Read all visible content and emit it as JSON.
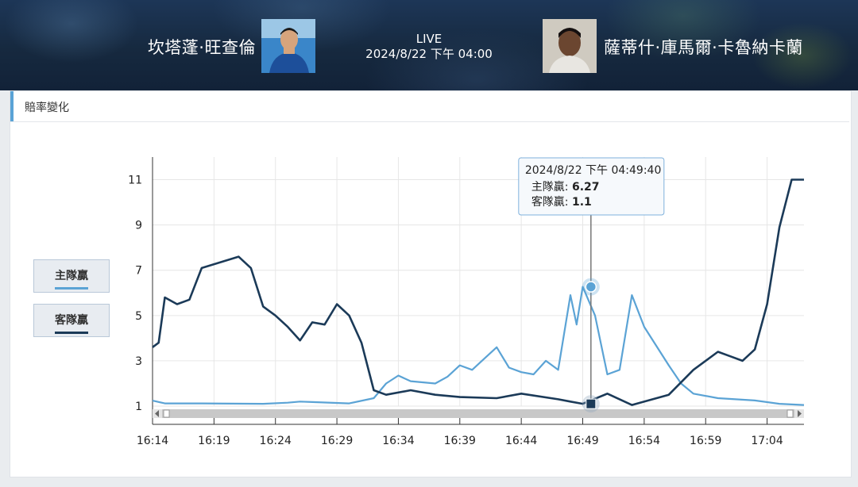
{
  "header": {
    "home_player": "坎塔蓬·旺查倫",
    "away_player": "薩蒂什·庫馬爾·卡魯納卡蘭",
    "status": "LIVE",
    "datetime": "2024/8/22 下午 04:00"
  },
  "panel": {
    "title": "賠率變化"
  },
  "colors": {
    "home": "#5ba3d5",
    "away": "#1b3a58",
    "accent": "#5aa3d6"
  },
  "chart_data": {
    "type": "line",
    "x_ticks": [
      "16:14",
      "16:19",
      "16:24",
      "16:29",
      "16:34",
      "16:39",
      "16:44",
      "16:49",
      "16:54",
      "16:59",
      "17:04"
    ],
    "y_ticks": [
      "1",
      "3",
      "5",
      "7",
      "9",
      "11"
    ],
    "x_range": [
      "16:14",
      "17:07"
    ],
    "ylim": [
      1,
      12
    ],
    "grid": true,
    "legend_position": "left",
    "series": [
      {
        "name": "主隊贏",
        "color": "#5ba3d5",
        "points": [
          [
            "16:14",
            1.24
          ],
          [
            "16:15",
            1.12
          ],
          [
            "16:18",
            1.12
          ],
          [
            "16:23",
            1.1
          ],
          [
            "16:25",
            1.15
          ],
          [
            "16:26",
            1.2
          ],
          [
            "16:27",
            1.18
          ],
          [
            "16:30",
            1.12
          ],
          [
            "16:32",
            1.35
          ],
          [
            "16:33",
            2.0
          ],
          [
            "16:34",
            2.35
          ],
          [
            "16:35",
            2.1
          ],
          [
            "16:37",
            2.0
          ],
          [
            "16:38",
            2.3
          ],
          [
            "16:39",
            2.8
          ],
          [
            "16:40",
            2.6
          ],
          [
            "16:41",
            3.1
          ],
          [
            "16:42",
            3.6
          ],
          [
            "16:43",
            2.7
          ],
          [
            "16:44",
            2.5
          ],
          [
            "16:45",
            2.4
          ],
          [
            "16:46",
            3.0
          ],
          [
            "16:47",
            2.6
          ],
          [
            "16:48",
            5.9
          ],
          [
            "16:48:30",
            4.6
          ],
          [
            "16:49",
            6.27
          ],
          [
            "16:50",
            5.0
          ],
          [
            "16:51",
            2.4
          ],
          [
            "16:52",
            2.6
          ],
          [
            "16:53",
            5.9
          ],
          [
            "16:54",
            4.5
          ],
          [
            "16:56",
            2.8
          ],
          [
            "16:57",
            2.0
          ],
          [
            "16:58",
            1.55
          ],
          [
            "17:00",
            1.35
          ],
          [
            "17:03",
            1.25
          ],
          [
            "17:05",
            1.1
          ],
          [
            "17:07",
            1.05
          ]
        ]
      },
      {
        "name": "客隊贏",
        "color": "#1b3a58",
        "points": [
          [
            "16:14",
            3.6
          ],
          [
            "16:14:30",
            3.8
          ],
          [
            "16:15",
            5.8
          ],
          [
            "16:16",
            5.5
          ],
          [
            "16:17",
            5.7
          ],
          [
            "16:18",
            7.1
          ],
          [
            "16:21",
            7.6
          ],
          [
            "16:22",
            7.1
          ],
          [
            "16:23",
            5.4
          ],
          [
            "16:24",
            5.0
          ],
          [
            "16:25",
            4.5
          ],
          [
            "16:26",
            3.9
          ],
          [
            "16:27",
            4.7
          ],
          [
            "16:28",
            4.6
          ],
          [
            "16:29",
            5.5
          ],
          [
            "16:30",
            5.0
          ],
          [
            "16:31",
            3.8
          ],
          [
            "16:32",
            1.7
          ],
          [
            "16:33",
            1.5
          ],
          [
            "16:35",
            1.7
          ],
          [
            "16:37",
            1.5
          ],
          [
            "16:39",
            1.4
          ],
          [
            "16:42",
            1.35
          ],
          [
            "16:44",
            1.55
          ],
          [
            "16:47",
            1.3
          ],
          [
            "16:48",
            1.2
          ],
          [
            "16:49",
            1.1
          ],
          [
            "16:51",
            1.55
          ],
          [
            "16:53",
            1.05
          ],
          [
            "16:56",
            1.5
          ],
          [
            "16:58",
            2.6
          ],
          [
            "17:00",
            3.4
          ],
          [
            "17:01",
            3.2
          ],
          [
            "17:02",
            3.0
          ],
          [
            "17:03",
            3.5
          ],
          [
            "17:04",
            5.5
          ],
          [
            "17:05",
            8.9
          ],
          [
            "17:06",
            11.0
          ],
          [
            "17:07",
            11.0
          ]
        ]
      }
    ],
    "tooltip": {
      "time": "2024/8/22 下午 04:49:40",
      "rows": [
        {
          "label": "主隊贏:",
          "value": "6.27"
        },
        {
          "label": "客隊贏:",
          "value": "1.1"
        }
      ]
    },
    "scrollbar_range": [
      0,
      1
    ]
  }
}
